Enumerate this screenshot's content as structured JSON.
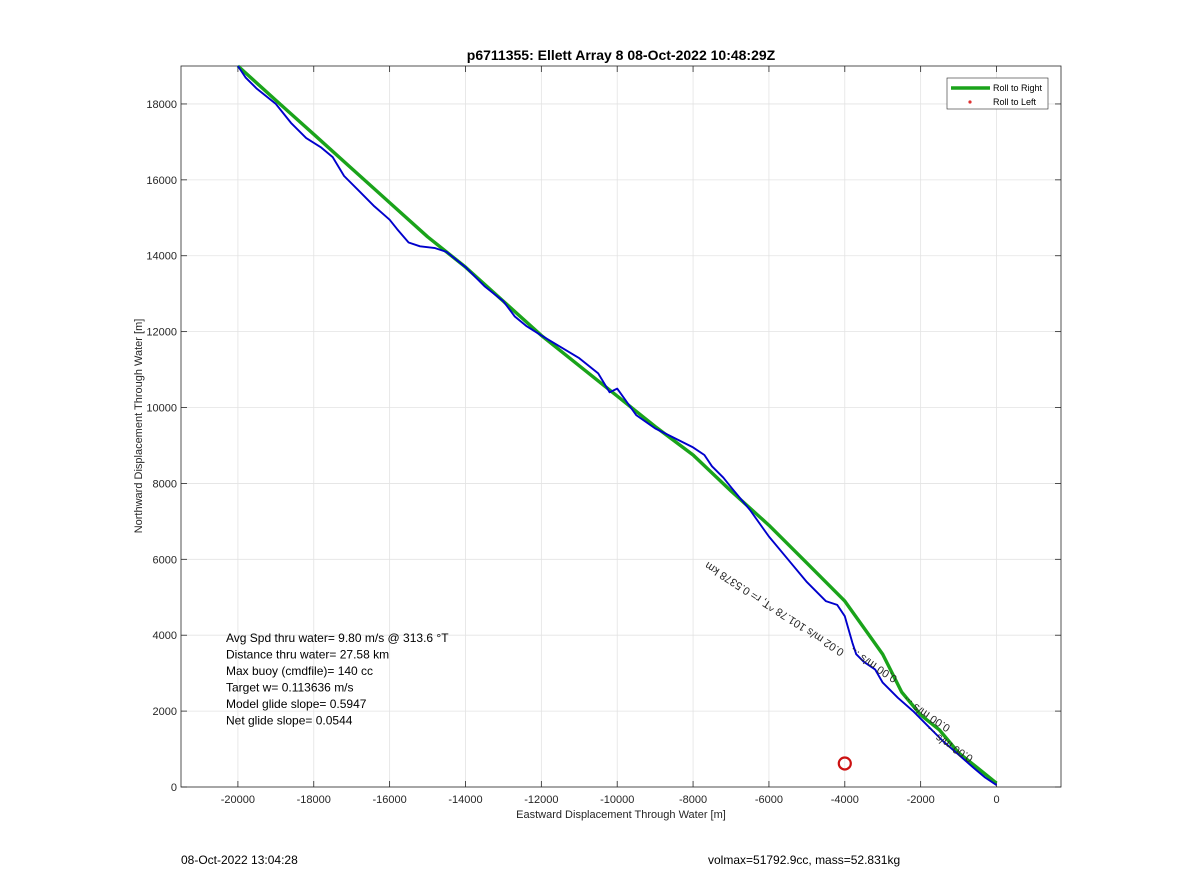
{
  "chart_data": {
    "type": "line",
    "title": "p6711355: Ellett Array 8 08-Oct-2022 10:48:29Z",
    "xlabel": "Eastward Displacement Through Water [m]",
    "ylabel": "Northward Displacement Through Water [m]",
    "xlim": [
      -21500,
      1700
    ],
    "ylim": [
      0,
      19000
    ],
    "xticks": [
      -20000,
      -18000,
      -16000,
      -14000,
      -12000,
      -10000,
      -8000,
      -6000,
      -4000,
      -2000,
      0
    ],
    "yticks": [
      0,
      2000,
      4000,
      6000,
      8000,
      10000,
      12000,
      14000,
      16000,
      18000
    ],
    "grid": true,
    "legend_position": "top-right",
    "legend": [
      {
        "label": "Roll to Right",
        "color": "#1aa31a",
        "marker": "line"
      },
      {
        "label": "Roll to Left",
        "color": "#e03030",
        "marker": "dot"
      }
    ],
    "series": [
      {
        "name": "Roll to Right",
        "color": "#1aa31a",
        "x": [
          -20000,
          -19000,
          -18000,
          -17000,
          -16000,
          -15000,
          -14000,
          -13000,
          -12000,
          -11000,
          -10000,
          -9000,
          -8000,
          -7000,
          -6000,
          -5000,
          -4000,
          -3000,
          -2500,
          -2000,
          -1500,
          -1000,
          -500,
          0
        ],
        "y": [
          19000,
          18100,
          17200,
          16300,
          15400,
          14500,
          13700,
          12800,
          11900,
          11100,
          10300,
          9500,
          8750,
          7800,
          6900,
          5900,
          4900,
          3500,
          2500,
          1900,
          1500,
          900,
          500,
          100
        ]
      },
      {
        "name": "",
        "color": "#0000cc",
        "x": [
          -20000,
          -19800,
          -19500,
          -19000,
          -18600,
          -18200,
          -17800,
          -17500,
          -17200,
          -16800,
          -16400,
          -16000,
          -15800,
          -15500,
          -15200,
          -14800,
          -14500,
          -14000,
          -13500,
          -13000,
          -12700,
          -12400,
          -12000,
          -11500,
          -11000,
          -10500,
          -10200,
          -10000,
          -9500,
          -9000,
          -8500,
          -8000,
          -7700,
          -7500,
          -7200,
          -7000,
          -6500,
          -6000,
          -5500,
          -5000,
          -4500,
          -4200,
          -4000,
          -3800,
          -3700,
          -3500,
          -3200,
          -3000,
          -2600,
          -2200,
          -1800,
          -1400,
          -1000,
          -600,
          -300,
          0
        ],
        "y": [
          19000,
          18700,
          18400,
          18000,
          17500,
          17100,
          16850,
          16600,
          16100,
          15700,
          15300,
          14950,
          14700,
          14350,
          14250,
          14200,
          14100,
          13700,
          13200,
          12800,
          12400,
          12150,
          11900,
          11600,
          11300,
          10900,
          10400,
          10500,
          9800,
          9450,
          9200,
          8950,
          8750,
          8450,
          8150,
          7900,
          7300,
          6600,
          6000,
          5400,
          4900,
          4800,
          4500,
          3800,
          3500,
          3300,
          3100,
          2750,
          2350,
          2000,
          1600,
          1200,
          850,
          500,
          250,
          50
        ]
      }
    ],
    "annotations": [
      {
        "text": "Avg Spd thru water=  9.80 m/s @ 313.6 °T"
      },
      {
        "text": "Distance thru water= 27.58 km"
      },
      {
        "text": "Max buoy (cmdfile)= 140 cc"
      },
      {
        "text": "Target w= 0.113636 m/s"
      },
      {
        "text": "Model glide slope= 0.5947"
      },
      {
        "text": "Net glide slope= 0.0544"
      }
    ],
    "rotated_labels": [
      {
        "text": "0.00 m/s ...",
        "x": -2600,
        "y": 2900
      },
      {
        "text": "0.02 m/s 101.78 ^T, r= 0.5378 km",
        "x": -4000,
        "y": 3600
      },
      {
        "text": "0.00 m/s ...",
        "x": -1200,
        "y": 1600
      },
      {
        "text": "0.00 m/s ...",
        "x": -600,
        "y": 800
      }
    ],
    "target_marker": {
      "x": -4000,
      "y": 620,
      "color": "#cc1111"
    }
  },
  "footer": {
    "left": "08-Oct-2022 13:04:28",
    "right": "volmax=51792.9cc, mass=52.831kg"
  }
}
